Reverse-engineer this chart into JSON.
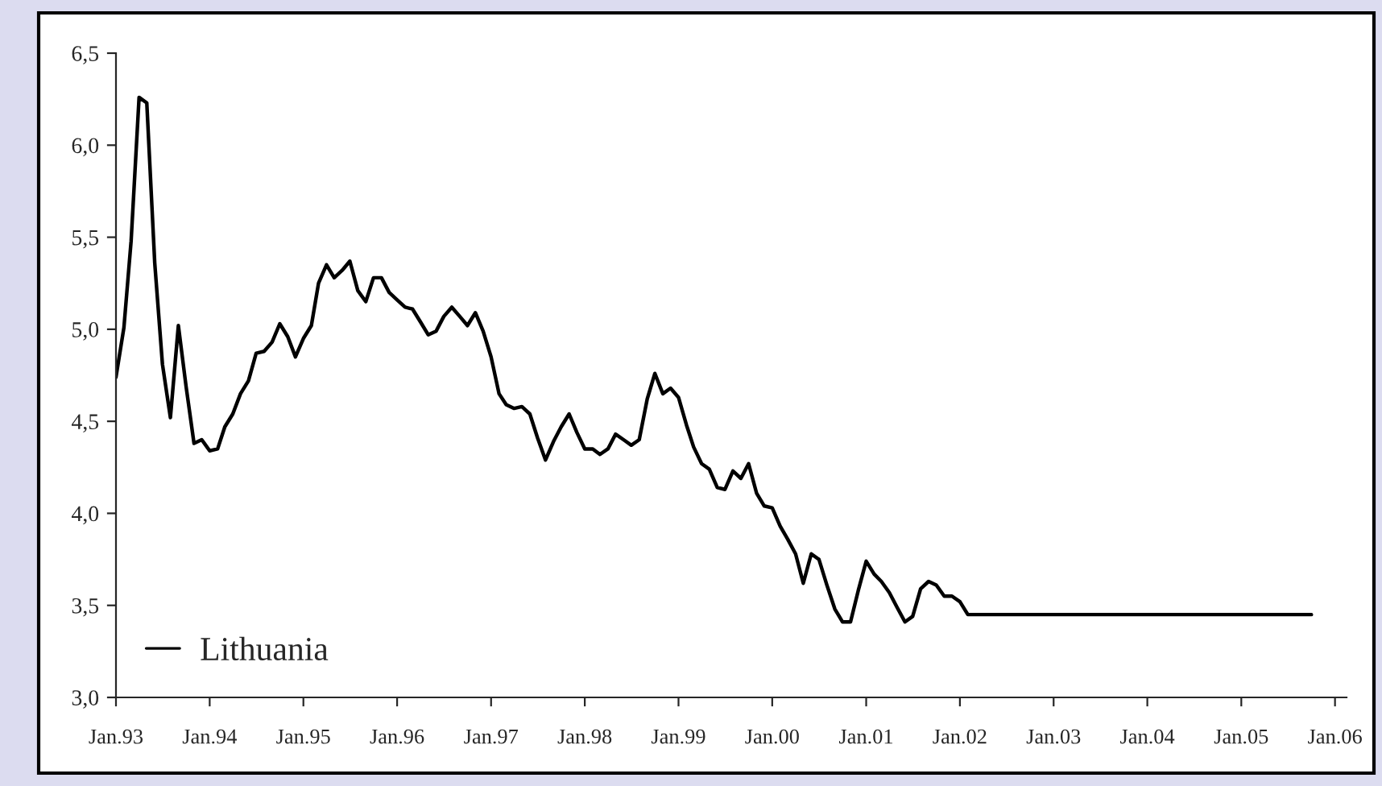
{
  "chart_data": {
    "type": "line",
    "x": [
      "1993-01",
      "1993-02",
      "1993-03",
      "1993-04",
      "1993-05",
      "1993-06",
      "1993-07",
      "1993-08",
      "1993-09",
      "1993-10",
      "1993-11",
      "1993-12",
      "1994-01",
      "1994-02",
      "1994-03",
      "1994-04",
      "1994-05",
      "1994-06",
      "1994-07",
      "1994-08",
      "1994-09",
      "1994-10",
      "1994-11",
      "1994-12",
      "1995-01",
      "1995-02",
      "1995-03",
      "1995-04",
      "1995-05",
      "1995-06",
      "1995-07",
      "1995-08",
      "1995-09",
      "1995-10",
      "1995-11",
      "1995-12",
      "1996-01",
      "1996-02",
      "1996-03",
      "1996-04",
      "1996-05",
      "1996-06",
      "1996-07",
      "1996-08",
      "1996-09",
      "1996-10",
      "1996-11",
      "1996-12",
      "1997-01",
      "1997-02",
      "1997-03",
      "1997-04",
      "1997-05",
      "1997-06",
      "1997-07",
      "1997-08",
      "1997-09",
      "1997-10",
      "1997-11",
      "1997-12",
      "1998-01",
      "1998-02",
      "1998-03",
      "1998-04",
      "1998-05",
      "1998-06",
      "1998-07",
      "1998-08",
      "1998-09",
      "1998-10",
      "1998-11",
      "1998-12",
      "1999-01",
      "1999-02",
      "1999-03",
      "1999-04",
      "1999-05",
      "1999-06",
      "1999-07",
      "1999-08",
      "1999-09",
      "1999-10",
      "1999-11",
      "1999-12",
      "2000-01",
      "2000-02",
      "2000-03",
      "2000-04",
      "2000-05",
      "2000-06",
      "2000-07",
      "2000-08",
      "2000-09",
      "2000-10",
      "2000-11",
      "2000-12",
      "2001-01",
      "2001-02",
      "2001-03",
      "2001-04",
      "2001-05",
      "2001-06",
      "2001-07",
      "2001-08",
      "2001-09",
      "2001-10",
      "2001-11",
      "2001-12",
      "2002-01",
      "2002-02",
      "2002-06",
      "2002-12",
      "2003-06",
      "2003-12",
      "2004-06",
      "2004-12",
      "2005-06",
      "2005-10"
    ],
    "series": [
      {
        "name": "Lithuania",
        "color": "#000000",
        "values": [
          4.74,
          5.01,
          5.48,
          6.26,
          6.23,
          5.36,
          4.81,
          4.52,
          5.02,
          4.69,
          4.38,
          4.4,
          4.34,
          4.35,
          4.47,
          4.54,
          4.65,
          4.72,
          4.87,
          4.88,
          4.93,
          5.03,
          4.96,
          4.85,
          4.95,
          5.02,
          5.25,
          5.35,
          5.28,
          5.32,
          5.37,
          5.21,
          5.15,
          5.28,
          5.28,
          5.2,
          5.16,
          5.12,
          5.11,
          5.04,
          4.97,
          4.99,
          5.07,
          5.12,
          5.07,
          5.02,
          5.09,
          4.99,
          4.85,
          4.65,
          4.59,
          4.57,
          4.58,
          4.54,
          4.41,
          4.29,
          4.39,
          4.47,
          4.54,
          4.44,
          4.35,
          4.35,
          4.32,
          4.35,
          4.43,
          4.4,
          4.37,
          4.4,
          4.62,
          4.76,
          4.65,
          4.68,
          4.63,
          4.48,
          4.36,
          4.27,
          4.24,
          4.14,
          4.13,
          4.23,
          4.19,
          4.27,
          4.11,
          4.04,
          4.03,
          3.93,
          3.86,
          3.78,
          3.62,
          3.78,
          3.75,
          3.61,
          3.48,
          3.41,
          3.41,
          3.58,
          3.74,
          3.67,
          3.63,
          3.57,
          3.49,
          3.41,
          3.44,
          3.59,
          3.63,
          3.61,
          3.55,
          3.55,
          3.52,
          3.45,
          3.45,
          3.45,
          3.45,
          3.45,
          3.45,
          3.45,
          3.45,
          3.45
        ]
      }
    ],
    "xlim": [
      "1993-01",
      "2006-02-15"
    ],
    "xticks": [
      {
        "value": "1993-01",
        "label": "Jan.93"
      },
      {
        "value": "1994-01",
        "label": "Jan.94"
      },
      {
        "value": "1995-01",
        "label": "Jan.95"
      },
      {
        "value": "1996-01",
        "label": "Jan.96"
      },
      {
        "value": "1997-01",
        "label": "Jan.97"
      },
      {
        "value": "1998-01",
        "label": "Jan.98"
      },
      {
        "value": "1999-01",
        "label": "Jan.99"
      },
      {
        "value": "2000-01",
        "label": "Jan.00"
      },
      {
        "value": "2001-01",
        "label": "Jan.01"
      },
      {
        "value": "2002-01",
        "label": "Jan.02"
      },
      {
        "value": "2003-01",
        "label": "Jan.03"
      },
      {
        "value": "2004-01",
        "label": "Jan.04"
      },
      {
        "value": "2005-01",
        "label": "Jan.05"
      },
      {
        "value": "2006-01",
        "label": "Jan.06"
      }
    ],
    "ylim": [
      3.0,
      6.5
    ],
    "yticks": [
      {
        "value": 3.0,
        "label": "3,0"
      },
      {
        "value": 3.5,
        "label": "3,5"
      },
      {
        "value": 4.0,
        "label": "4,0"
      },
      {
        "value": 4.5,
        "label": "4,5"
      },
      {
        "value": 5.0,
        "label": "5,0"
      },
      {
        "value": 5.5,
        "label": "5,5"
      },
      {
        "value": 6.0,
        "label": "6,0"
      },
      {
        "value": 6.5,
        "label": "6,5"
      }
    ],
    "grid": false,
    "legend": "bottom left",
    "marker": "none",
    "line_style": "solid"
  }
}
